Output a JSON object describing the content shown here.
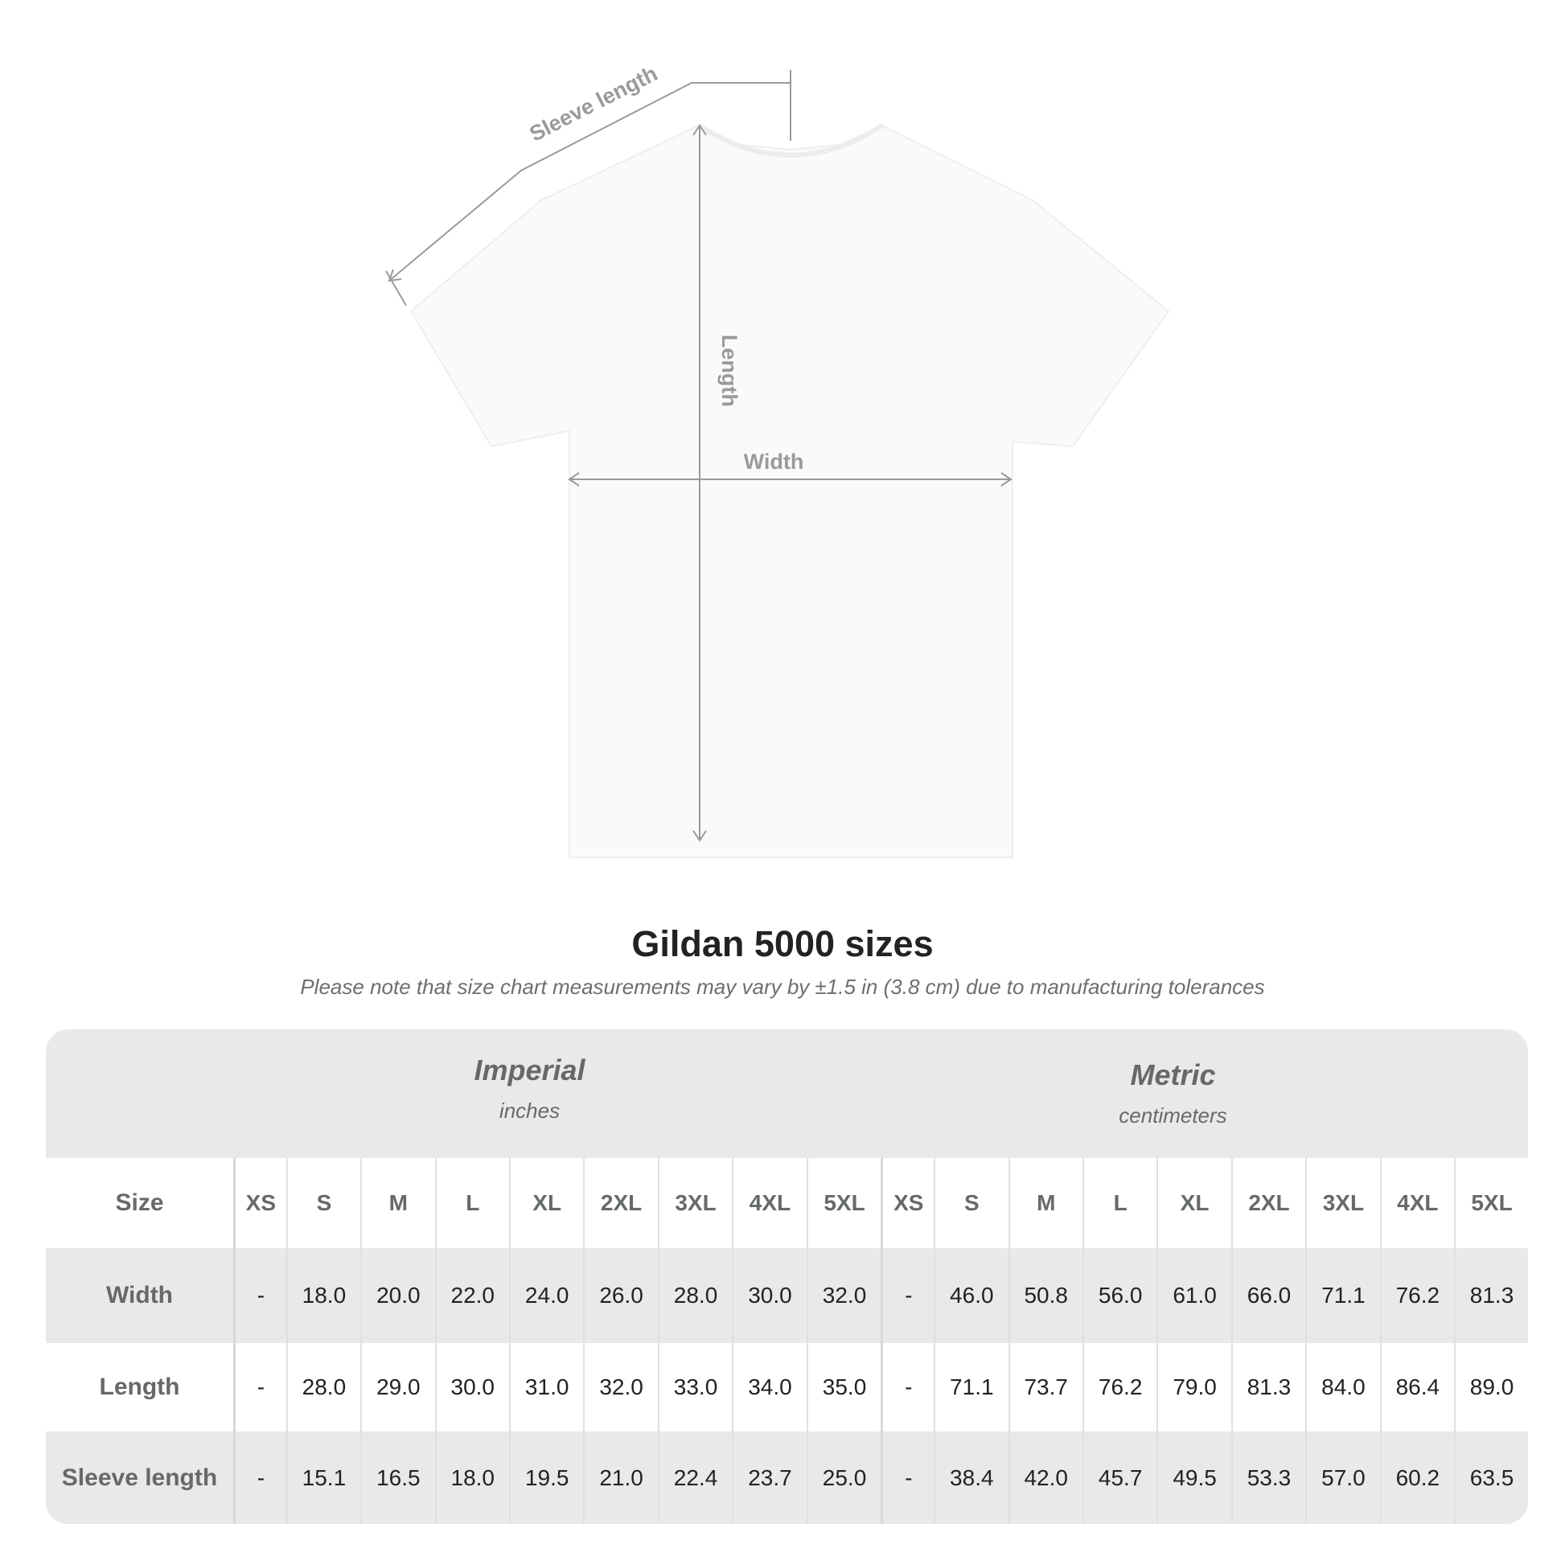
{
  "diagram": {
    "labels": {
      "sleeve": "Sleeve length",
      "length": "Length",
      "width": "Width"
    },
    "shirt_color": "#ffffff",
    "line_color": "#9a9a9a"
  },
  "title": "Gildan 5000 sizes",
  "note": "Please note that size chart measurements may vary by ±1.5 in (3.8 cm) due to manufacturing tolerances",
  "table": {
    "imperial": {
      "name": "Imperial",
      "unit": "inches"
    },
    "metric": {
      "name": "Metric",
      "unit": "centimeters"
    },
    "size_label": "Size",
    "sizes": [
      "XS",
      "S",
      "M",
      "L",
      "XL",
      "2XL",
      "3XL",
      "4XL",
      "5XL"
    ],
    "rows": [
      {
        "label": "Width",
        "imperial": [
          "-",
          "18.0",
          "20.0",
          "22.0",
          "24.0",
          "26.0",
          "28.0",
          "30.0",
          "32.0"
        ],
        "metric": [
          "-",
          "46.0",
          "50.8",
          "56.0",
          "61.0",
          "66.0",
          "71.1",
          "76.2",
          "81.3"
        ]
      },
      {
        "label": "Length",
        "imperial": [
          "-",
          "28.0",
          "29.0",
          "30.0",
          "31.0",
          "32.0",
          "33.0",
          "34.0",
          "35.0"
        ],
        "metric": [
          "-",
          "71.1",
          "73.7",
          "76.2",
          "79.0",
          "81.3",
          "84.0",
          "86.4",
          "89.0"
        ]
      },
      {
        "label": "Sleeve length",
        "imperial": [
          "-",
          "15.1",
          "16.5",
          "18.0",
          "19.5",
          "21.0",
          "22.4",
          "23.7",
          "25.0"
        ],
        "metric": [
          "-",
          "38.4",
          "42.0",
          "45.7",
          "49.5",
          "53.3",
          "57.0",
          "60.2",
          "63.5"
        ]
      }
    ]
  }
}
